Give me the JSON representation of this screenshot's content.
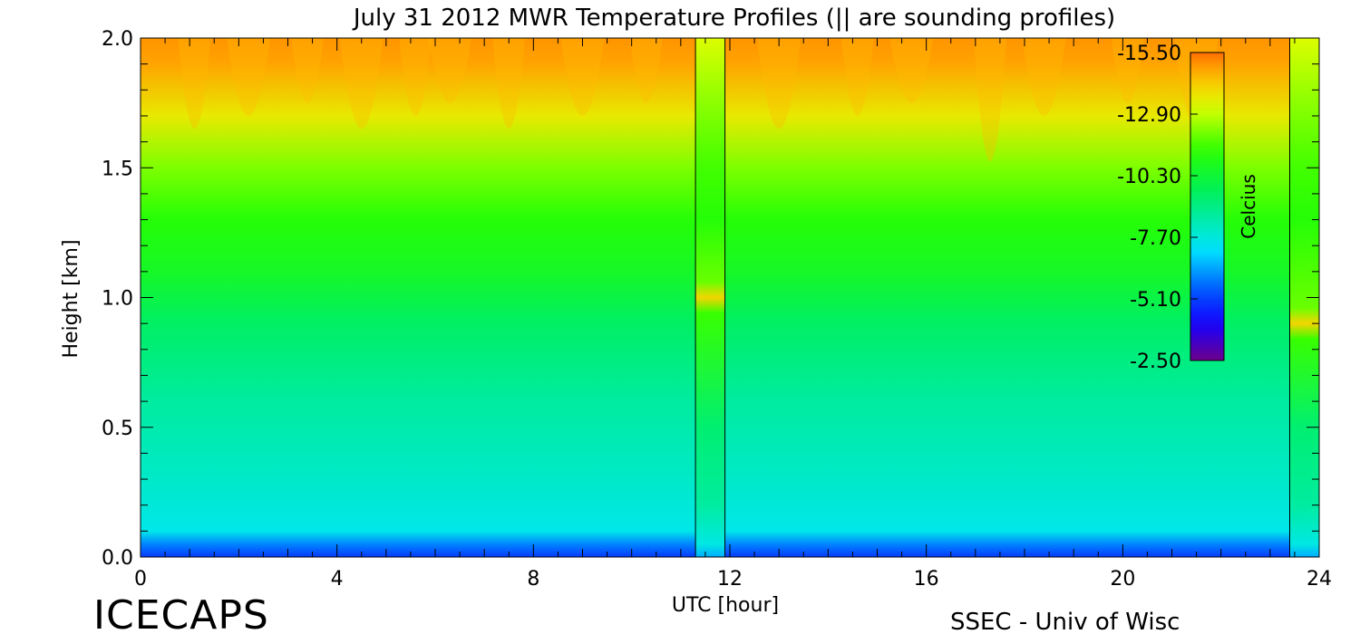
{
  "chart_data": {
    "type": "heatmap",
    "title": "July 31 2012 MWR Temperature Profiles (|| are sounding profiles)",
    "xlabel": "UTC [hour]",
    "ylabel": "Height [km]",
    "xlim": [
      0,
      24
    ],
    "ylim": [
      0,
      2.0
    ],
    "x_ticks": [
      0,
      4,
      8,
      12,
      16,
      20,
      24
    ],
    "x_tick_labels": [
      "0",
      "4",
      "8",
      "12",
      "16",
      "20",
      "24"
    ],
    "y_ticks": [
      0.0,
      0.5,
      1.0,
      1.5,
      2.0
    ],
    "y_tick_labels": [
      "0.0",
      "0.5",
      "1.0",
      "1.5",
      "2.0"
    ],
    "colorbar": {
      "label": "Celcius",
      "range": [
        -15.5,
        -2.5
      ],
      "ticks": [
        -2.5,
        -5.1,
        -7.7,
        -10.3,
        -12.9,
        -15.5
      ],
      "tick_labels": [
        "-2.50",
        "-5.10",
        "-7.70",
        "-10.30",
        "-12.90",
        "-15.50"
      ]
    },
    "sounding_profiles": [
      {
        "x_start": 11.3,
        "x_end": 11.9,
        "cold_layer_height_km": 1.0
      },
      {
        "x_start": 23.4,
        "x_end": 24.0,
        "cold_layer_height_km": 0.9
      }
    ],
    "gradient_profile": {
      "heights_km": [
        0.0,
        0.05,
        0.1,
        0.3,
        0.6,
        0.9,
        1.1,
        1.3,
        1.5,
        1.7,
        1.9,
        2.0
      ],
      "temperatures_c": [
        -5.0,
        -6.0,
        -7.5,
        -8.0,
        -8.6,
        -9.5,
        -10.6,
        -11.2,
        -12.2,
        -13.6,
        -14.8,
        -15.0
      ]
    }
  },
  "footer": {
    "logo_text": "ICECAPS",
    "credit": "SSEC - Univ of Wisc"
  }
}
